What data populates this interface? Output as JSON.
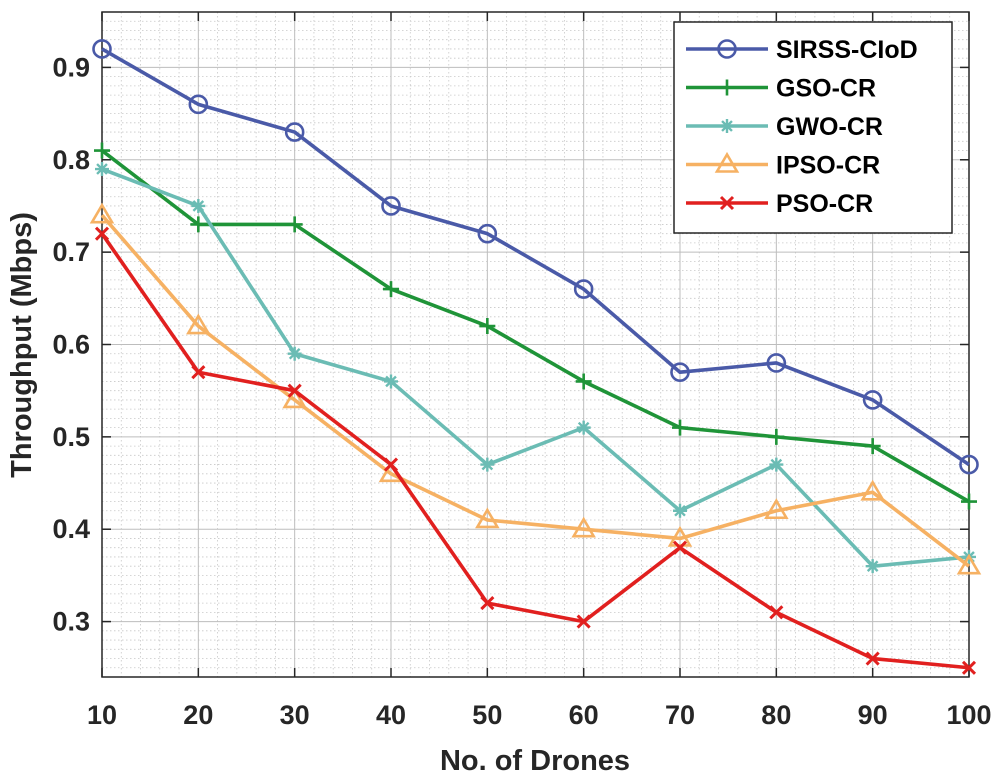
{
  "chart_data": {
    "type": "line",
    "title": "",
    "xlabel": "No. of Drones",
    "ylabel": "Throughput (Mbps)",
    "x": [
      10,
      20,
      30,
      40,
      50,
      60,
      70,
      80,
      90,
      100
    ],
    "xlim": [
      10,
      100
    ],
    "ylim": [
      0.24,
      0.96
    ],
    "xticks": [
      10,
      20,
      30,
      40,
      50,
      60,
      70,
      80,
      90,
      100
    ],
    "xtick_labels": [
      "10",
      "20",
      "30",
      "40",
      "50",
      "60",
      "70",
      "80",
      "90",
      "100"
    ],
    "yticks": [
      0.3,
      0.4,
      0.5,
      0.6,
      0.7,
      0.8,
      0.9
    ],
    "ytick_labels": [
      "0.3",
      "0.4",
      "0.5",
      "0.6",
      "0.7",
      "0.8",
      "0.9"
    ],
    "grid": true,
    "minor_grid": true,
    "legend_position": "top-right",
    "series": [
      {
        "name": "SIRSS-CIoD",
        "color": "#4a5aa8",
        "marker": "circle",
        "values": [
          0.92,
          0.86,
          0.83,
          0.75,
          0.72,
          0.66,
          0.57,
          0.58,
          0.54,
          0.47
        ]
      },
      {
        "name": "GSO-CR",
        "color": "#1f9438",
        "marker": "plus",
        "values": [
          0.81,
          0.73,
          0.73,
          0.66,
          0.62,
          0.56,
          0.51,
          0.5,
          0.49,
          0.43
        ]
      },
      {
        "name": "GWO-CR",
        "color": "#6bbcb4",
        "marker": "asterisk",
        "values": [
          0.79,
          0.75,
          0.59,
          0.56,
          0.47,
          0.51,
          0.42,
          0.47,
          0.36,
          0.37
        ]
      },
      {
        "name": "IPSO-CR",
        "color": "#f6b163",
        "marker": "triangle",
        "values": [
          0.74,
          0.62,
          0.54,
          0.46,
          0.41,
          0.4,
          0.39,
          0.42,
          0.44,
          0.36
        ]
      },
      {
        "name": "PSO-CR",
        "color": "#e1201f",
        "marker": "x",
        "values": [
          0.72,
          0.57,
          0.55,
          0.47,
          0.32,
          0.3,
          0.38,
          0.31,
          0.26,
          0.25
        ]
      }
    ]
  }
}
